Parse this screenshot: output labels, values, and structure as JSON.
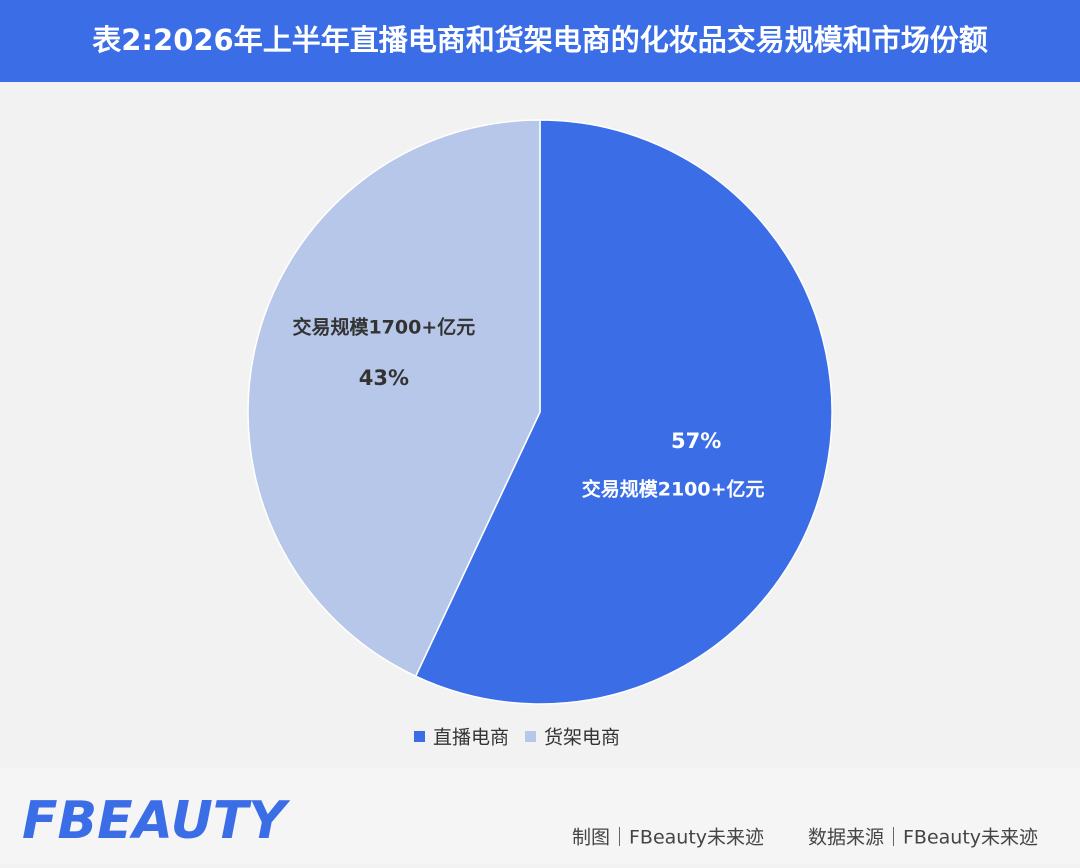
{
  "chart_data": {
    "type": "pie",
    "title": "表2:2026年上半年直播电商和货架电商的化妆品交易规模和市场份额",
    "categories": [
      "直播电商",
      "货架电商"
    ],
    "values": [
      57,
      43
    ],
    "value_labels": [
      "57%",
      "43%"
    ],
    "annotations": [
      "交易规模2100+亿元",
      "交易规模1700+亿元"
    ],
    "colors": [
      "#3a6de6",
      "#b7c7e9"
    ],
    "legend": "bottom"
  },
  "footer": {
    "logo": "FBEAUTY",
    "made_by": "制图｜FBeauty未来迹",
    "source": "数据来源｜FBeauty未来迹"
  }
}
